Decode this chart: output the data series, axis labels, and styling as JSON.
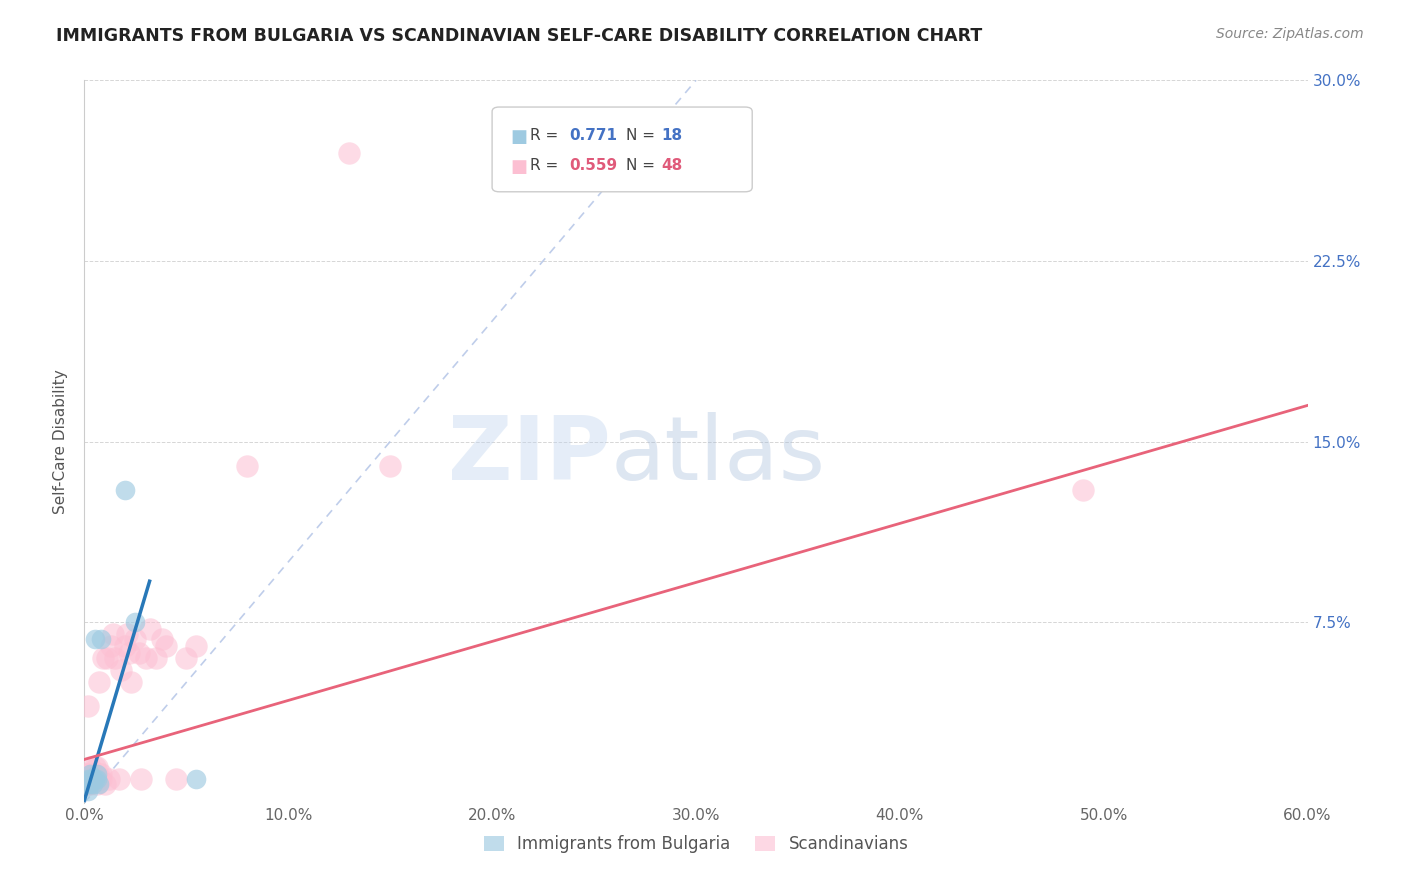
{
  "title": "IMMIGRANTS FROM BULGARIA VS SCANDINAVIAN SELF-CARE DISABILITY CORRELATION CHART",
  "source": "Source: ZipAtlas.com",
  "ylabel": "Self-Care Disability",
  "xlim": [
    0.0,
    0.6
  ],
  "ylim": [
    0.0,
    0.3
  ],
  "xticks": [
    0.0,
    0.1,
    0.2,
    0.3,
    0.4,
    0.5,
    0.6
  ],
  "yticks": [
    0.0,
    0.075,
    0.15,
    0.225,
    0.3
  ],
  "xticklabels": [
    "0.0%",
    "10.0%",
    "20.0%",
    "30.0%",
    "40.0%",
    "50.0%",
    "60.0%"
  ],
  "yticklabels_right": [
    "",
    "7.5%",
    "15.0%",
    "22.5%",
    "30.0%"
  ],
  "blue_color": "#9ecae1",
  "pink_color": "#fcbfd2",
  "blue_line_color": "#2878b8",
  "pink_line_color": "#e8637a",
  "dashed_line_color": "#b8c8e8",
  "watermark_zip": "ZIP",
  "watermark_atlas": "atlas",
  "blue_points_x": [
    0.001,
    0.002,
    0.002,
    0.002,
    0.003,
    0.003,
    0.003,
    0.004,
    0.004,
    0.005,
    0.005,
    0.006,
    0.006,
    0.007,
    0.008,
    0.02,
    0.025,
    0.055
  ],
  "blue_points_y": [
    0.008,
    0.005,
    0.008,
    0.01,
    0.008,
    0.01,
    0.012,
    0.008,
    0.01,
    0.01,
    0.068,
    0.01,
    0.012,
    0.008,
    0.068,
    0.13,
    0.075,
    0.01
  ],
  "blue_line_x0": 0.0,
  "blue_line_x1": 0.032,
  "blue_line_y0": 0.001,
  "blue_line_y1": 0.092,
  "pink_line_x0": 0.0,
  "pink_line_x1": 0.6,
  "pink_line_y0": 0.018,
  "pink_line_y1": 0.165,
  "dashed_line_x0": 0.0,
  "dashed_line_x1": 0.3,
  "dashed_line_y0": 0.0,
  "dashed_line_y1": 0.3,
  "pink_points_x": [
    0.001,
    0.001,
    0.001,
    0.002,
    0.002,
    0.002,
    0.002,
    0.003,
    0.003,
    0.003,
    0.004,
    0.004,
    0.005,
    0.005,
    0.006,
    0.006,
    0.007,
    0.007,
    0.008,
    0.008,
    0.009,
    0.01,
    0.011,
    0.012,
    0.013,
    0.014,
    0.015,
    0.017,
    0.018,
    0.02,
    0.021,
    0.022,
    0.023,
    0.025,
    0.027,
    0.028,
    0.03,
    0.032,
    0.035,
    0.038,
    0.04,
    0.045,
    0.05,
    0.055,
    0.08,
    0.13,
    0.15,
    0.49
  ],
  "pink_points_y": [
    0.008,
    0.01,
    0.012,
    0.008,
    0.01,
    0.012,
    0.04,
    0.008,
    0.01,
    0.015,
    0.01,
    0.012,
    0.01,
    0.015,
    0.008,
    0.015,
    0.01,
    0.05,
    0.01,
    0.012,
    0.06,
    0.008,
    0.06,
    0.01,
    0.065,
    0.07,
    0.06,
    0.01,
    0.055,
    0.065,
    0.07,
    0.062,
    0.05,
    0.068,
    0.062,
    0.01,
    0.06,
    0.072,
    0.06,
    0.068,
    0.065,
    0.01,
    0.06,
    0.065,
    0.14,
    0.27,
    0.14,
    0.13
  ]
}
